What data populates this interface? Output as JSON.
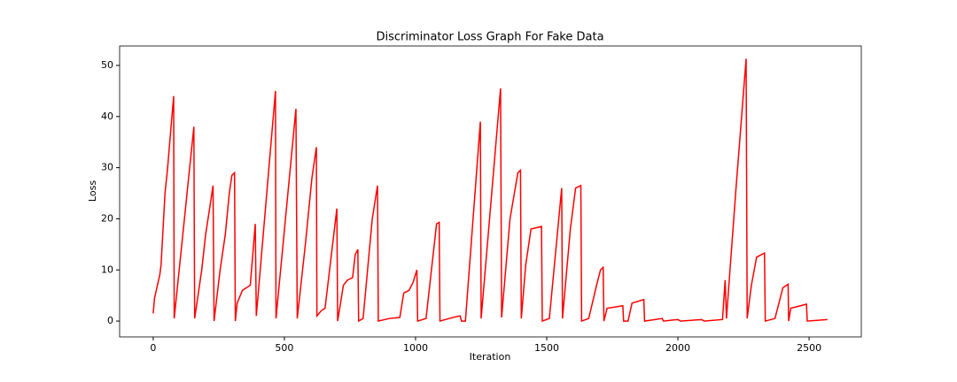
{
  "chart_data": {
    "type": "line",
    "title": "Discriminator Loss Graph For Fake Data",
    "xlabel": "Iteration",
    "ylabel": "Loss",
    "xlim": [
      -128,
      2699
    ],
    "ylim": [
      -3.1,
      53.8
    ],
    "xticks": [
      0,
      500,
      1000,
      1500,
      2000,
      2500
    ],
    "yticks": [
      0,
      10,
      20,
      30,
      40,
      50
    ],
    "x": [
      0,
      5,
      25,
      30,
      45,
      55,
      68,
      78,
      80,
      155,
      158,
      185,
      200,
      215,
      228,
      232,
      255,
      275,
      290,
      300,
      310,
      313,
      320,
      340,
      370,
      389,
      393,
      466,
      468,
      544,
      549,
      580,
      605,
      622,
      624,
      640,
      655,
      700,
      703,
      725,
      740,
      760,
      770,
      780,
      783,
      800,
      835,
      855,
      858,
      900,
      940,
      955,
      975,
      990,
      1005,
      1008,
      1040,
      1080,
      1090,
      1093,
      1150,
      1170,
      1175,
      1190,
      1247,
      1250,
      1324,
      1328,
      1360,
      1390,
      1400,
      1403,
      1420,
      1440,
      1480,
      1483,
      1510,
      1557,
      1560,
      1590,
      1610,
      1630,
      1633,
      1660,
      1690,
      1705,
      1715,
      1718,
      1730,
      1790,
      1793,
      1810,
      1825,
      1870,
      1873,
      1940,
      1945,
      2000,
      2010,
      2090,
      2100,
      2170,
      2180,
      2185,
      2220,
      2260,
      2264,
      2280,
      2300,
      2330,
      2333,
      2370,
      2400,
      2420,
      2422,
      2430,
      2490,
      2493,
      2570
    ],
    "series": [
      {
        "name": "Loss",
        "color": "#ff0000",
        "values": [
          1.5,
          4.5,
          9,
          11,
          25,
          30,
          38,
          44,
          0.5,
          38,
          0.5,
          10,
          17,
          22,
          26.5,
          0,
          10,
          17,
          25,
          28.5,
          29,
          0,
          3.5,
          6,
          7,
          19,
          1,
          45,
          0.5,
          41.5,
          0.5,
          15,
          28,
          34,
          1,
          2,
          2.5,
          22,
          0,
          7,
          8,
          8.5,
          13,
          14,
          0,
          0.5,
          20,
          26.5,
          0,
          0.5,
          0.7,
          5.5,
          6,
          7.5,
          10,
          0,
          0.5,
          19,
          19.3,
          0,
          0.8,
          1,
          0,
          0,
          39,
          0.5,
          45.5,
          0.7,
          20,
          29,
          29.5,
          0.5,
          11,
          18,
          18.5,
          0,
          0.5,
          26,
          0.5,
          18,
          26,
          26.5,
          0,
          0.5,
          7,
          10,
          10.5,
          0,
          2.5,
          3,
          0,
          0,
          3.5,
          4.2,
          0,
          0.5,
          0,
          0.3,
          0,
          0.3,
          0,
          0.3,
          8,
          0.5,
          25,
          51.3,
          0.5,
          7,
          12.5,
          13.3,
          0,
          0.5,
          6.5,
          7.2,
          0,
          2.5,
          3.3,
          0,
          0.3
        ]
      }
    ]
  }
}
